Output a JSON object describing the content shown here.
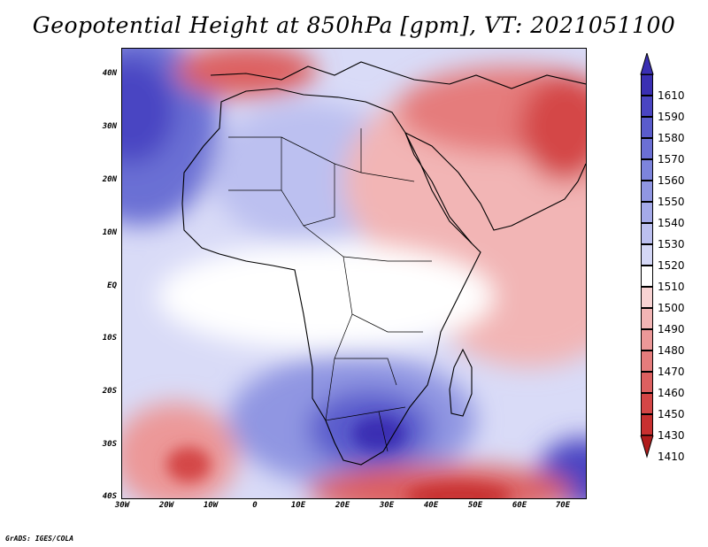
{
  "title": "Geopotential Height at 850hPa [gpm], VT: 2021051100",
  "credit": "GrADS: IGES/COLA",
  "x_ticks": [
    "30W",
    "20W",
    "10W",
    "0",
    "10E",
    "20E",
    "30E",
    "40E",
    "50E",
    "60E",
    "70E"
  ],
  "y_ticks": [
    "40N",
    "30N",
    "20N",
    "10N",
    "EQ",
    "10S",
    "20S",
    "30S",
    "40S"
  ],
  "colorbar": {
    "labels": [
      "1610",
      "1590",
      "1580",
      "1570",
      "1560",
      "1550",
      "1540",
      "1530",
      "1520",
      "1510",
      "1500",
      "1490",
      "1480",
      "1470",
      "1460",
      "1450",
      "1430",
      "1410"
    ],
    "colors": [
      "#3a2fb3",
      "#4a45c2",
      "#5a5ccc",
      "#6b6fd4",
      "#7d84dc",
      "#9096e2",
      "#a5aae9",
      "#bcc0f0",
      "#d4d7f6",
      "#ffffff",
      "#f8d3d3",
      "#f2b5b5",
      "#ec9898",
      "#e57c7c",
      "#dd6060",
      "#d44646",
      "#c83030",
      "#b01c1c"
    ]
  }
}
